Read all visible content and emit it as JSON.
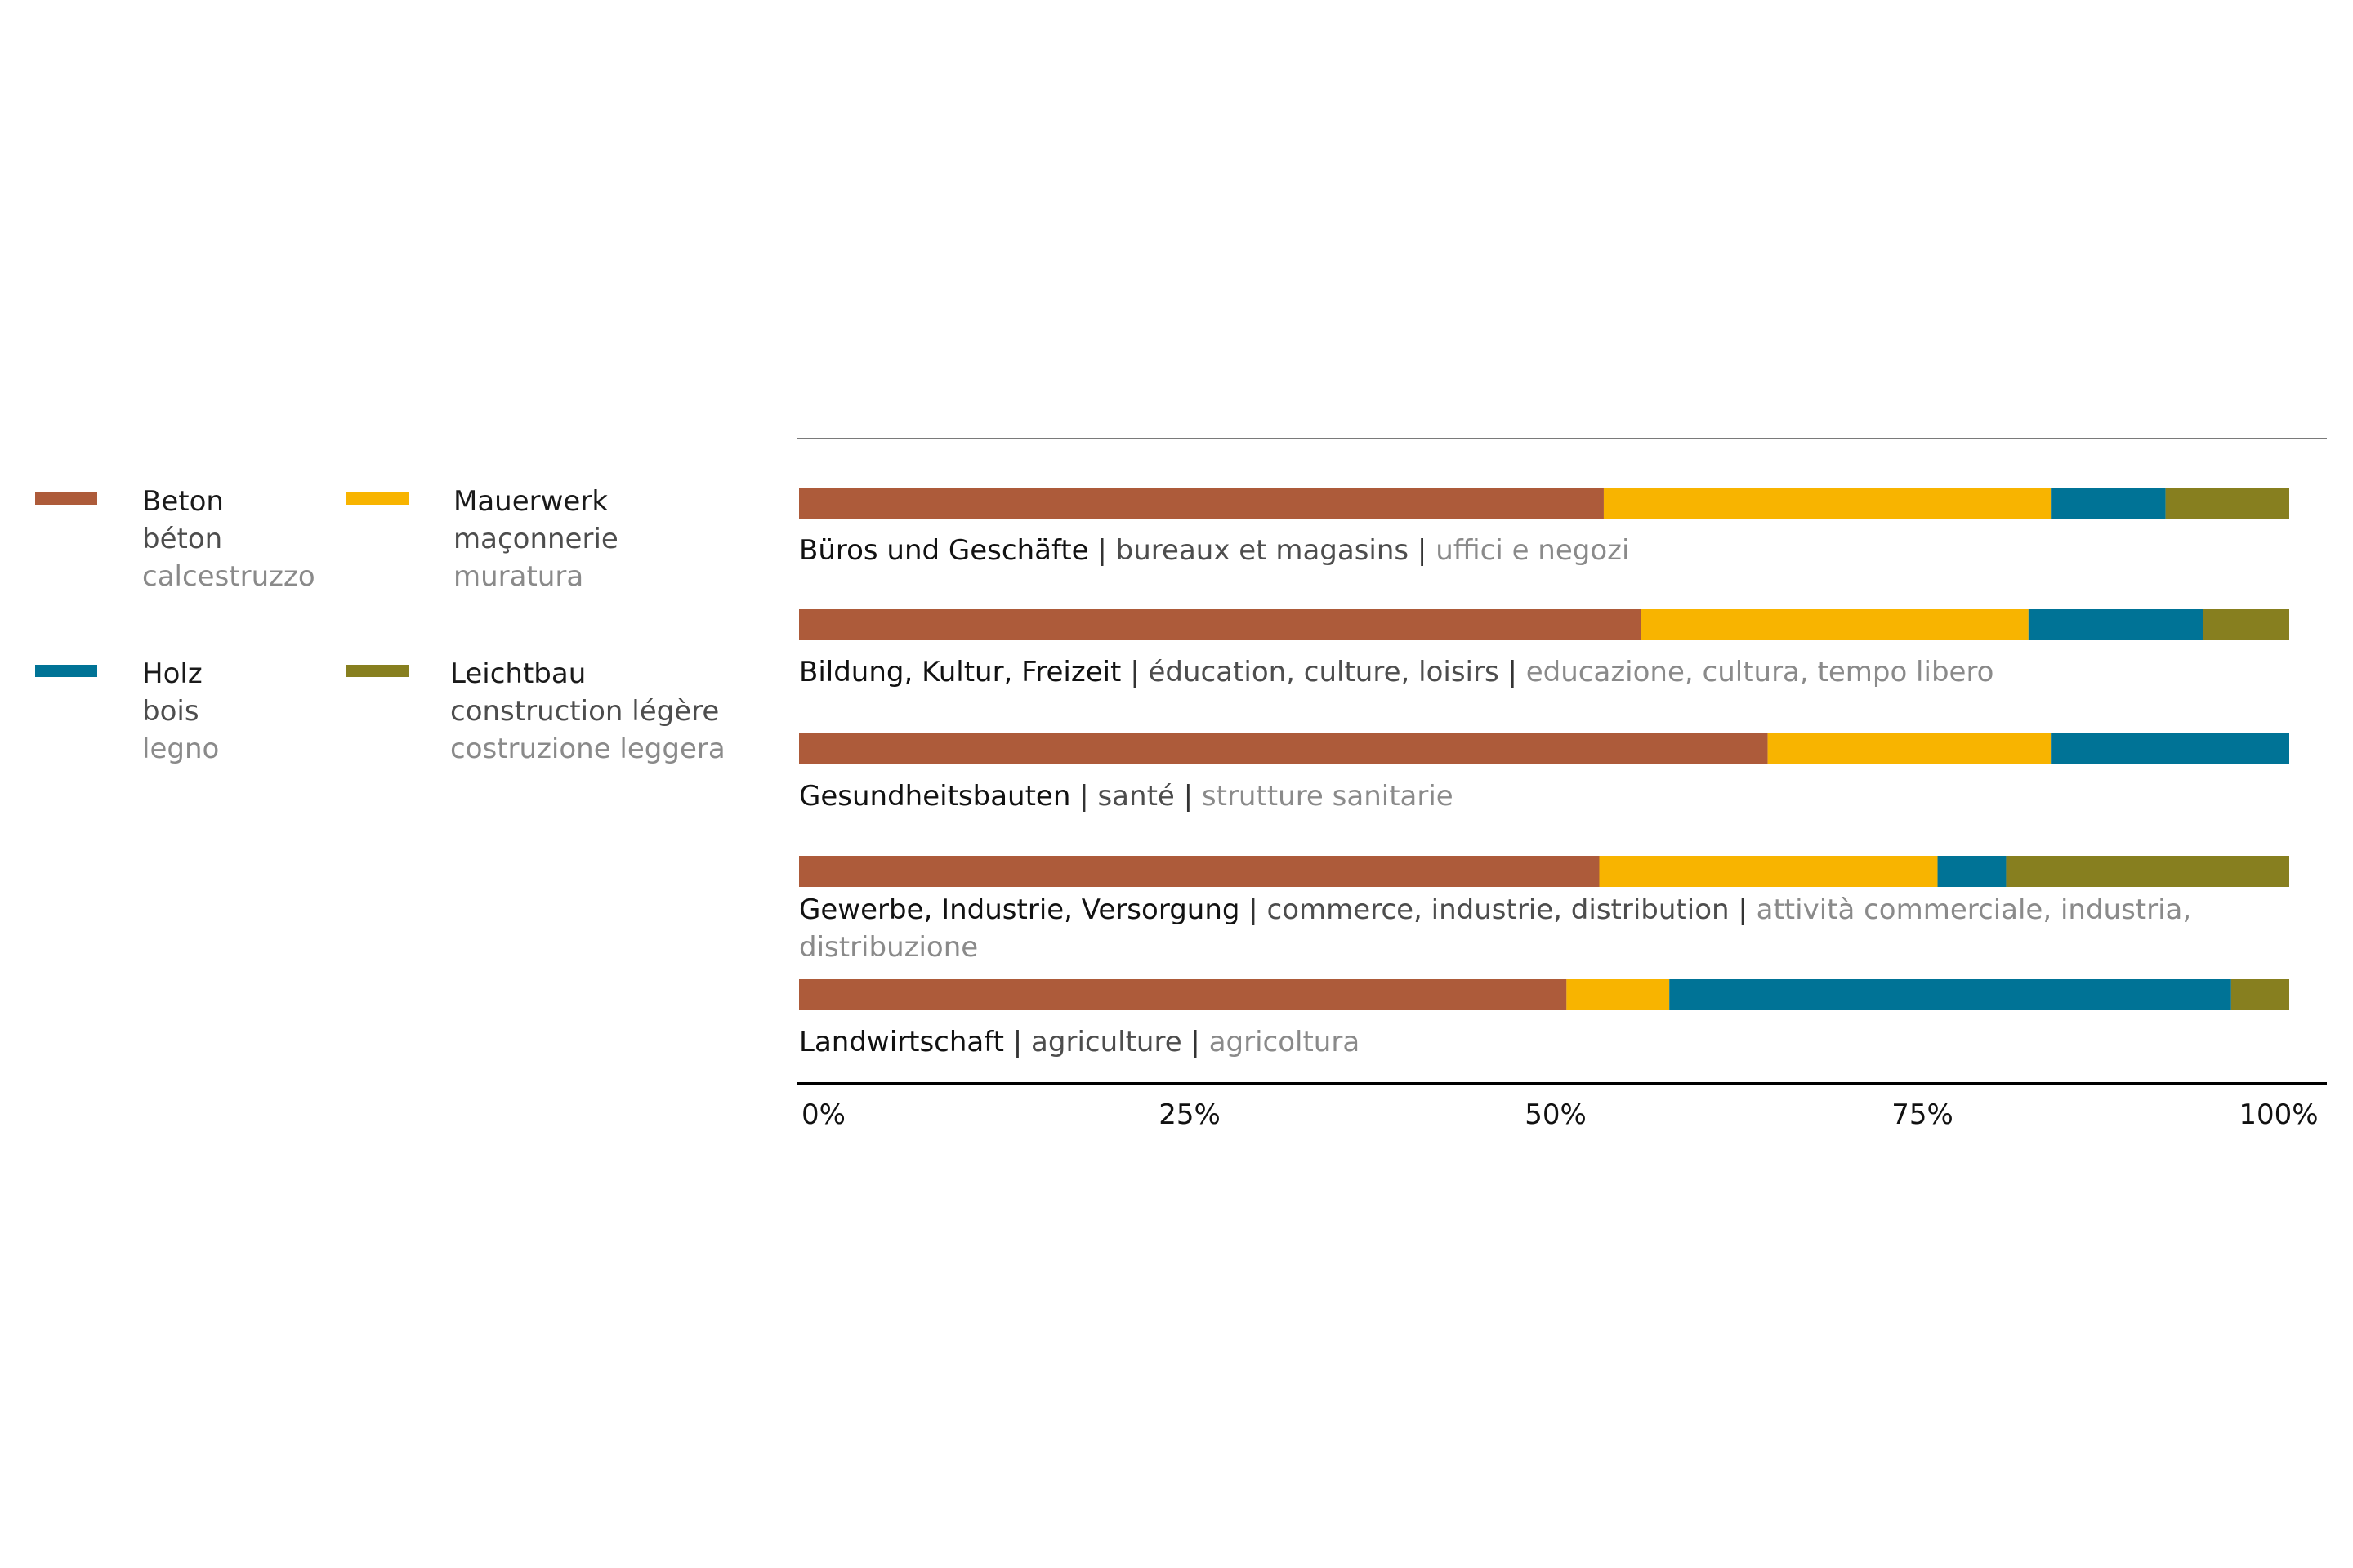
{
  "chart_data": {
    "type": "bar",
    "orientation": "horizontal",
    "stacked": true,
    "categories": [
      {
        "de": "Büros und Geschäfte",
        "fr": "bureaux et magasins",
        "it": "uffici e negozi"
      },
      {
        "de": "Bildung, Kultur, Freizeit",
        "fr": "éducation, culture, loisirs",
        "it": "educazione, cultura, tempo libero"
      },
      {
        "de": "Gesundheitsbauten",
        "fr": "santé",
        "it": "strutture sanitarie"
      },
      {
        "de": "Gewerbe, Industrie, Versorgung",
        "fr": "commerce, industrie, distribution",
        "it": "attività commerciale, industria, distribuzione"
      },
      {
        "de": "Landwirtschaft",
        "fr": "agriculture",
        "it": "agricoltura"
      }
    ],
    "series": [
      {
        "key": "beton",
        "de": "Beton",
        "fr": "béton",
        "it": "calcestruzzo",
        "color": "#AD5B3A",
        "values": [
          54,
          56.5,
          65,
          53.7,
          51.5
        ]
      },
      {
        "key": "mauerwerk",
        "de": "Mauerwerk",
        "fr": "maçonnerie",
        "it": "muratura",
        "color": "#F8B400",
        "values": [
          30,
          26,
          19,
          22.7,
          6.9
        ]
      },
      {
        "key": "holz",
        "de": "Holz",
        "fr": "bois",
        "it": "legno",
        "color": "#007396",
        "values": [
          7.7,
          11.7,
          16,
          4.6,
          37.7
        ]
      },
      {
        "key": "leichtbau",
        "de": "Leichtbau",
        "fr": "construction légère",
        "it": "costruzione leggera",
        "color": "#877F1F",
        "values": [
          8.3,
          5.8,
          0,
          19,
          3.9
        ]
      }
    ],
    "xticks": [
      "0%",
      "25%",
      "50%",
      "75%",
      "100%"
    ],
    "xlim": [
      0,
      100
    ],
    "legend": "left"
  },
  "separator": "|"
}
